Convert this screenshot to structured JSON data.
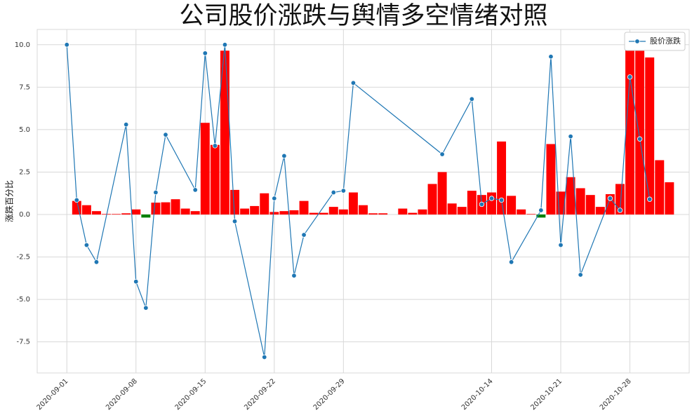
{
  "chart_data": {
    "type": "bar-line",
    "title": "公司股价涨跌与舆情多空情绪对照",
    "y_label": "涨跌百分比",
    "xlim": [
      "2020-08-29",
      "2020-11-03"
    ],
    "xticks": [
      "2020-09-01",
      "2020-09-08",
      "2020-09-15",
      "2020-09-22",
      "2020-09-29",
      "2020-10-14",
      "2020-10-21",
      "2020-10-28"
    ],
    "ylim": [
      -9.33,
      10.9
    ],
    "yticks": [
      {
        "value": 10,
        "label": "10.0"
      },
      7.5,
      {
        "value": 5,
        "label": "5.0"
      },
      2.5,
      {
        "value": 0,
        "label": "0.0"
      },
      -2.5,
      {
        "value": -5,
        "label": "-5.0"
      },
      -7.5
    ],
    "grid": true,
    "legend": "upper right",
    "series": [
      {
        "name": "股价涨跌",
        "type": "line",
        "color": "#1f77b4",
        "x": [
          "2020-09-01",
          "2020-09-02",
          "2020-09-03",
          "2020-09-04",
          "2020-09-07",
          "2020-09-08",
          "2020-09-09",
          "2020-09-10",
          "2020-09-11",
          "2020-09-14",
          "2020-09-15",
          "2020-09-16",
          "2020-09-17",
          "2020-09-18",
          "2020-09-21",
          "2020-09-22",
          "2020-09-23",
          "2020-09-24",
          "2020-09-25",
          "2020-09-28",
          "2020-09-29",
          "2020-09-30",
          "2020-10-09",
          "2020-10-12",
          "2020-10-13",
          "2020-10-14",
          "2020-10-15",
          "2020-10-16",
          "2020-10-19",
          "2020-10-20",
          "2020-10-21",
          "2020-10-22",
          "2020-10-23",
          "2020-10-26",
          "2020-10-27",
          "2020-10-28",
          "2020-10-29",
          "2020-10-30"
        ],
        "values": [
          10.0,
          0.85,
          -1.8,
          -2.8,
          5.3,
          -3.95,
          -5.5,
          1.3,
          4.7,
          1.45,
          9.5,
          4.05,
          10.0,
          -0.4,
          -8.4,
          0.95,
          3.45,
          -3.6,
          -1.2,
          1.3,
          1.4,
          7.75,
          3.55,
          6.8,
          0.6,
          0.95,
          0.85,
          -2.8,
          0.25,
          9.3,
          -1.8,
          4.6,
          -3.55,
          0.95,
          0.25,
          8.1,
          4.45,
          0.9
        ]
      },
      {
        "type": "bar",
        "color": "#ff0000",
        "negative_color": "#008000",
        "x": [
          "2020-09-02",
          "2020-09-03",
          "2020-09-04",
          "2020-09-05",
          "2020-09-06",
          "2020-09-07",
          "2020-09-08",
          "2020-09-09",
          "2020-09-10",
          "2020-09-11",
          "2020-09-12",
          "2020-09-13",
          "2020-09-14",
          "2020-09-15",
          "2020-09-16",
          "2020-09-17",
          "2020-09-18",
          "2020-09-19",
          "2020-09-20",
          "2020-09-21",
          "2020-09-22",
          "2020-09-23",
          "2020-09-24",
          "2020-09-25",
          "2020-09-26",
          "2020-09-27",
          "2020-09-28",
          "2020-09-29",
          "2020-09-30",
          "2020-10-01",
          "2020-10-02",
          "2020-10-03",
          "2020-10-05",
          "2020-10-06",
          "2020-10-07",
          "2020-10-08",
          "2020-10-09",
          "2020-10-10",
          "2020-10-11",
          "2020-10-12",
          "2020-10-13",
          "2020-10-14",
          "2020-10-15",
          "2020-10-16",
          "2020-10-17",
          "2020-10-18",
          "2020-10-19",
          "2020-10-20",
          "2020-10-21",
          "2020-10-22",
          "2020-10-23",
          "2020-10-24",
          "2020-10-25",
          "2020-10-26",
          "2020-10-27",
          "2020-10-28",
          "2020-10-29",
          "2020-10-30",
          "2020-10-31",
          "2020-11-01"
        ],
        "values": [
          0.8,
          0.55,
          0.2,
          0.03,
          0.03,
          0.07,
          0.3,
          -0.18,
          0.7,
          0.72,
          0.9,
          0.35,
          0.2,
          5.4,
          4.1,
          9.65,
          1.45,
          0.35,
          0.5,
          1.25,
          0.15,
          0.2,
          0.25,
          0.8,
          0.1,
          0.1,
          0.45,
          0.3,
          1.3,
          0.55,
          0.07,
          0.07,
          0.35,
          0.1,
          0.3,
          1.8,
          2.5,
          0.65,
          0.45,
          1.4,
          1.15,
          1.3,
          4.3,
          1.1,
          0.3,
          0.03,
          -0.18,
          4.15,
          1.35,
          2.2,
          1.55,
          1.15,
          0.45,
          1.2,
          1.8,
          10.0,
          9.7,
          9.25,
          3.2,
          1.9
        ]
      }
    ]
  }
}
